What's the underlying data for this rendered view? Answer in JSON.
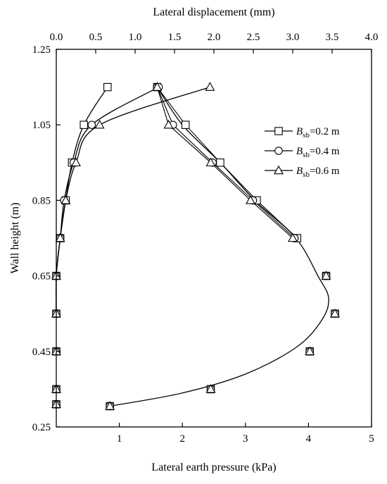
{
  "chart_data": {
    "type": "line",
    "xlabel": "Lateral earth pressure (kPa)",
    "x2label": "Lateral displacement (mm)",
    "ylabel": "Wall height (m)",
    "xlim": [
      0,
      5
    ],
    "x2lim": [
      0,
      4
    ],
    "ylim": [
      0.25,
      1.25
    ],
    "xticks": [
      "1",
      "2",
      "3",
      "4",
      "5"
    ],
    "x2ticks": [
      "0.0",
      "0.5",
      "1.0",
      "1.5",
      "2.0",
      "2.5",
      "3.0",
      "3.5",
      "4.0"
    ],
    "yticks": [
      "0.25",
      "0.45",
      "0.65",
      "0.85",
      "1.05",
      "1.25"
    ],
    "legend_position": "right",
    "pressure_curve": [
      {
        "x": 0.85,
        "y": 0.305
      },
      {
        "x": 2.0,
        "y": 0.34
      },
      {
        "x": 3.0,
        "y": 0.39
      },
      {
        "x": 3.8,
        "y": 0.46
      },
      {
        "x": 4.2,
        "y": 0.53
      },
      {
        "x": 4.32,
        "y": 0.59
      },
      {
        "x": 4.15,
        "y": 0.65
      },
      {
        "x": 3.8,
        "y": 0.75
      },
      {
        "x": 3.15,
        "y": 0.85
      },
      {
        "x": 2.6,
        "y": 0.95
      },
      {
        "x": 2.0,
        "y": 1.05
      },
      {
        "x": 1.6,
        "y": 1.15
      }
    ],
    "series": [
      {
        "name": "B",
        "subscript": "sb",
        "suffix": "=0.2 m",
        "marker": "square",
        "pressure": [
          {
            "x": 0.0,
            "y": 0.31
          },
          {
            "x": 0.0,
            "y": 0.35
          },
          {
            "x": 0.0,
            "y": 0.45
          },
          {
            "x": 0.85,
            "y": 0.305
          },
          {
            "x": 2.45,
            "y": 0.35
          },
          {
            "x": 4.02,
            "y": 0.45
          },
          {
            "x": 4.42,
            "y": 0.55
          },
          {
            "x": 4.28,
            "y": 0.65
          },
          {
            "x": 3.82,
            "y": 0.75
          },
          {
            "x": 3.18,
            "y": 0.85
          },
          {
            "x": 2.6,
            "y": 0.95
          },
          {
            "x": 2.05,
            "y": 1.05
          },
          {
            "x": 1.6,
            "y": 1.15
          }
        ],
        "displacement": [
          {
            "x": 0.0,
            "y": 0.55
          },
          {
            "x": 0.0,
            "y": 0.65
          },
          {
            "x": 0.05,
            "y": 0.75
          },
          {
            "x": 0.12,
            "y": 0.85
          },
          {
            "x": 0.2,
            "y": 0.95
          },
          {
            "x": 0.35,
            "y": 1.05
          },
          {
            "x": 0.65,
            "y": 1.15
          }
        ]
      },
      {
        "name": "B",
        "subscript": "sb",
        "suffix": "=0.4 m",
        "marker": "circle",
        "pressure": [
          {
            "x": 0.0,
            "y": 0.31
          },
          {
            "x": 0.0,
            "y": 0.35
          },
          {
            "x": 0.0,
            "y": 0.45
          },
          {
            "x": 0.85,
            "y": 0.305
          },
          {
            "x": 2.45,
            "y": 0.35
          },
          {
            "x": 4.02,
            "y": 0.45
          },
          {
            "x": 4.42,
            "y": 0.55
          },
          {
            "x": 4.28,
            "y": 0.65
          },
          {
            "x": 3.78,
            "y": 0.75
          },
          {
            "x": 3.12,
            "y": 0.85
          },
          {
            "x": 2.48,
            "y": 0.95
          },
          {
            "x": 1.85,
            "y": 1.05
          },
          {
            "x": 1.6,
            "y": 1.15
          }
        ],
        "displacement": [
          {
            "x": 0.0,
            "y": 0.55
          },
          {
            "x": 0.0,
            "y": 0.65
          },
          {
            "x": 0.05,
            "y": 0.75
          },
          {
            "x": 0.1,
            "y": 0.85
          },
          {
            "x": 0.22,
            "y": 0.95
          },
          {
            "x": 0.45,
            "y": 1.05
          },
          {
            "x": 1.3,
            "y": 1.15
          }
        ]
      },
      {
        "name": "B",
        "subscript": "sb",
        "suffix": "=0.6 m",
        "marker": "triangle",
        "pressure": [
          {
            "x": 0.0,
            "y": 0.31
          },
          {
            "x": 0.0,
            "y": 0.35
          },
          {
            "x": 0.0,
            "y": 0.45
          },
          {
            "x": 0.85,
            "y": 0.305
          },
          {
            "x": 2.45,
            "y": 0.35
          },
          {
            "x": 4.02,
            "y": 0.45
          },
          {
            "x": 4.42,
            "y": 0.55
          },
          {
            "x": 4.28,
            "y": 0.65
          },
          {
            "x": 3.75,
            "y": 0.75
          },
          {
            "x": 3.08,
            "y": 0.85
          },
          {
            "x": 2.45,
            "y": 0.95
          },
          {
            "x": 1.78,
            "y": 1.05
          },
          {
            "x": 1.6,
            "y": 1.15
          }
        ],
        "displacement": [
          {
            "x": 0.0,
            "y": 0.55
          },
          {
            "x": 0.0,
            "y": 0.65
          },
          {
            "x": 0.05,
            "y": 0.75
          },
          {
            "x": 0.12,
            "y": 0.85
          },
          {
            "x": 0.25,
            "y": 0.95
          },
          {
            "x": 0.55,
            "y": 1.05
          },
          {
            "x": 1.95,
            "y": 1.15
          }
        ]
      }
    ]
  }
}
